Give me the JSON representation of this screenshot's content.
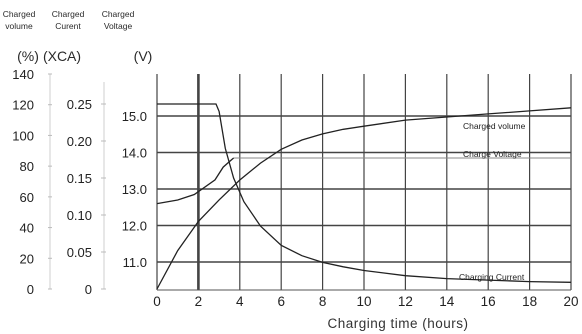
{
  "chart_data": {
    "type": "line",
    "xlabel": "Charging time (hours)",
    "x_ticks": [
      0,
      2,
      4,
      6,
      8,
      10,
      12,
      14,
      16,
      18,
      20
    ],
    "xlim": [
      0,
      20
    ],
    "axes": [
      {
        "header": "Charged volume",
        "unit": "(%)",
        "ticks": [
          0,
          20,
          40,
          60,
          80,
          100,
          120,
          140
        ],
        "ylim": [
          0,
          140
        ]
      },
      {
        "header": "Charged Curent",
        "unit": "(XCA)",
        "ticks": [
          "0",
          "0.05",
          "0.10",
          "0.15",
          "0.20",
          "0.25"
        ],
        "ylim": [
          0,
          0.25
        ]
      },
      {
        "header": "Charged Voltage",
        "unit": "(V)",
        "ticks": [
          "11.0",
          "12.0",
          "13.0",
          "14.0",
          "15.0"
        ],
        "ylim": [
          10.2,
          15.0
        ]
      }
    ],
    "grid": true,
    "series": [
      {
        "name": "Charged volume",
        "axis": 0,
        "x": [
          0,
          1,
          2,
          3,
          4,
          5,
          6,
          7,
          8,
          9,
          10,
          12,
          14,
          16,
          18,
          20
        ],
        "y": [
          0,
          25,
          44,
          58,
          71,
          82,
          91,
          97,
          101,
          104,
          106,
          110,
          112,
          114,
          116,
          118
        ]
      },
      {
        "name": "Charge Voltage",
        "axis": 2,
        "x": [
          0,
          1,
          1.8,
          2.8,
          3.2,
          3.5,
          3.7
        ],
        "y": [
          12.6,
          12.7,
          12.85,
          13.25,
          13.6,
          13.75,
          13.85
        ]
      },
      {
        "name": "Charging Current",
        "axis": 1,
        "x": [
          0,
          2.85,
          3.0,
          3.3,
          3.7,
          4.2,
          5,
          6,
          7,
          8,
          9,
          10,
          12,
          14,
          16,
          18,
          20
        ],
        "y": [
          0.25,
          0.25,
          0.24,
          0.19,
          0.15,
          0.118,
          0.085,
          0.059,
          0.045,
          0.036,
          0.03,
          0.025,
          0.018,
          0.014,
          0.012,
          0.01,
          0.009
        ]
      }
    ],
    "voltage_hold": {
      "axis": 2,
      "x": [
        3.7,
        20
      ],
      "y": 13.85
    },
    "current_initial": {
      "axis": 1,
      "x": [
        0,
        2.85
      ],
      "y": 0.25
    }
  }
}
